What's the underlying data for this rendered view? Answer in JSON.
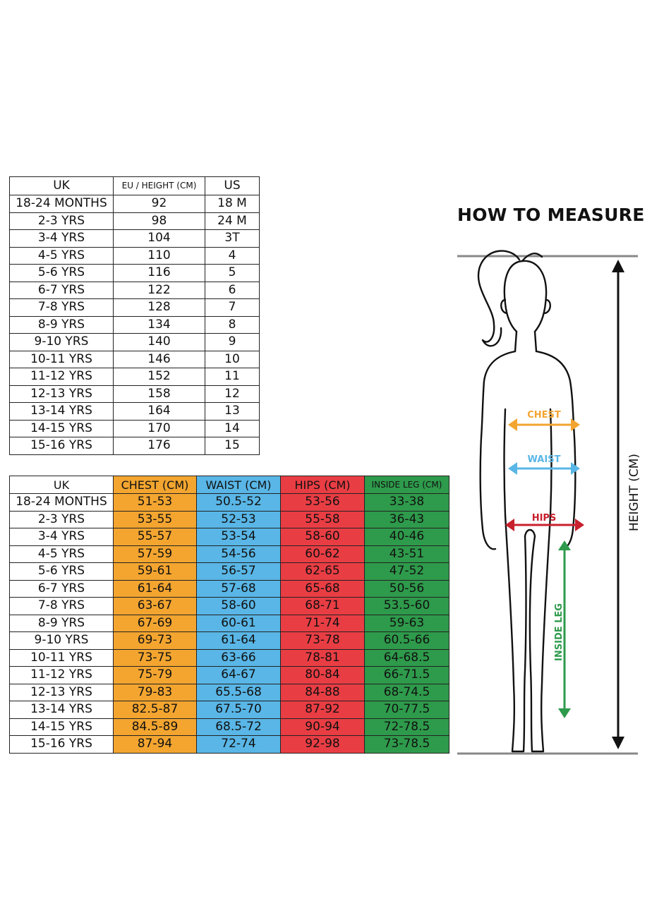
{
  "sizes_table": {
    "headers": [
      "UK",
      "EU / HEIGHT (CM)",
      "US"
    ],
    "rows": [
      [
        "18-24 MONTHS",
        "92",
        "18 M"
      ],
      [
        "2-3 YRS",
        "98",
        "24 M"
      ],
      [
        "3-4 YRS",
        "104",
        "3T"
      ],
      [
        "4-5 YRS",
        "110",
        "4"
      ],
      [
        "5-6 YRS",
        "116",
        "5"
      ],
      [
        "6-7 YRS",
        "122",
        "6"
      ],
      [
        "7-8 YRS",
        "128",
        "7"
      ],
      [
        "8-9 YRS",
        "134",
        "8"
      ],
      [
        "9-10 YRS",
        "140",
        "9"
      ],
      [
        "10-11 YRS",
        "146",
        "10"
      ],
      [
        "11-12 YRS",
        "152",
        "11"
      ],
      [
        "12-13 YRS",
        "158",
        "12"
      ],
      [
        "13-14 YRS",
        "164",
        "13"
      ],
      [
        "14-15 YRS",
        "170",
        "14"
      ],
      [
        "15-16 YRS",
        "176",
        "15"
      ]
    ]
  },
  "measurements_table": {
    "headers": [
      "UK",
      "CHEST (CM)",
      "WAIST (CM)",
      "HIPS (CM)",
      "INSIDE LEG (CM)"
    ],
    "rows": [
      [
        "18-24 MONTHS",
        "51-53",
        "50.5-52",
        "53-56",
        "33-38"
      ],
      [
        "2-3 YRS",
        "53-55",
        "52-53",
        "55-58",
        "36-43"
      ],
      [
        "3-4 YRS",
        "55-57",
        "53-54",
        "58-60",
        "40-46"
      ],
      [
        "4-5 YRS",
        "57-59",
        "54-56",
        "60-62",
        "43-51"
      ],
      [
        "5-6 YRS",
        "59-61",
        "56-57",
        "62-65",
        "47-52"
      ],
      [
        "6-7 YRS",
        "61-64",
        "57-68",
        "65-68",
        "50-56"
      ],
      [
        "7-8 YRS",
        "63-67",
        "58-60",
        "68-71",
        "53.5-60"
      ],
      [
        "8-9 YRS",
        "67-69",
        "60-61",
        "71-74",
        "59-63"
      ],
      [
        "9-10 YRS",
        "69-73",
        "61-64",
        "73-78",
        "60.5-66"
      ],
      [
        "10-11 YRS",
        "73-75",
        "63-66",
        "78-81",
        "64-68.5"
      ],
      [
        "11-12 YRS",
        "75-79",
        "64-67",
        "80-84",
        "66-71.5"
      ],
      [
        "12-13 YRS",
        "79-83",
        "65.5-68",
        "84-88",
        "68-74.5"
      ],
      [
        "13-14 YRS",
        "82.5-87",
        "67.5-70",
        "87-92",
        "70-77.5"
      ],
      [
        "14-15 YRS",
        "84.5-89",
        "68.5-72",
        "90-94",
        "72-78.5"
      ],
      [
        "15-16 YRS",
        "87-94",
        "72-74",
        "92-98",
        "73-78.5"
      ]
    ]
  },
  "how_to_measure": {
    "title": "HOW TO MEASURE",
    "chest_label": "CHEST",
    "waist_label": "WAIST",
    "hips_label": "HIPS",
    "inside_leg_label": "INSIDE LEG",
    "height_label": "HEIGHT (CM)"
  },
  "colors": {
    "chest": "#f3a530",
    "waist": "#59b6e6",
    "hips": "#e93d44",
    "inside_leg": "#2e9a4b"
  }
}
